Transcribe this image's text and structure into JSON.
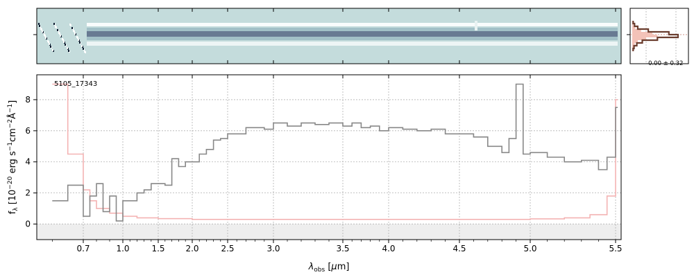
{
  "chart_data": [
    {
      "panel": "spectrum-2d",
      "type": "heatmap",
      "description_colormap": "bone_r / grey-blue",
      "band": "trace centered in aperture",
      "x_ticks": [
        0.7,
        1.0,
        1.5,
        2.0,
        2.5,
        3.0,
        3.5,
        4.0,
        4.5,
        5.0,
        5.5
      ]
    },
    {
      "panel": "spatial-profile",
      "type": "line",
      "annotation": "-0.00 ± 0.32",
      "profile": [
        0.02,
        0.05,
        0.12,
        0.35,
        0.8,
        1.0,
        0.55,
        0.22,
        0.1,
        0.04,
        0.02
      ],
      "colors": {
        "profile": "#6b3d2e",
        "band": "#f3c2b8"
      }
    },
    {
      "panel": "spectrum-1d",
      "type": "line",
      "label": "5105_17343",
      "xlabel": "λ_obs [μm]",
      "ylabel": "f_λ [10^-20 erg s^-1 cm^-2 Å^-1]",
      "xscale": "sqrt-like",
      "xlim": [
        0.55,
        5.52
      ],
      "ylim": [
        -1.0,
        9.6
      ],
      "x_ticks": [
        0.7,
        1.0,
        1.5,
        2.0,
        2.5,
        3.0,
        3.5,
        4.0,
        4.5,
        5.0,
        5.5
      ],
      "y_ticks": [
        0,
        2,
        4,
        6,
        8
      ],
      "grid": true,
      "series": [
        {
          "name": "",
          "color": "#888888",
          "x": [
            0.6,
            0.65,
            0.7,
            0.75,
            0.8,
            0.85,
            0.9,
            0.95,
            1.0,
            1.1,
            1.2,
            1.3,
            1.4,
            1.5,
            1.6,
            1.7,
            1.8,
            1.9,
            2.0,
            2.1,
            2.2,
            2.3,
            2.4,
            2.5,
            2.6,
            2.7,
            2.8,
            2.9,
            3.0,
            3.1,
            3.2,
            3.3,
            3.4,
            3.5,
            3.6,
            3.7,
            3.8,
            3.9,
            4.0,
            4.1,
            4.2,
            4.3,
            4.4,
            4.5,
            4.6,
            4.7,
            4.8,
            4.85,
            4.9,
            4.95,
            5.0,
            5.1,
            5.2,
            5.3,
            5.4,
            5.45,
            5.5
          ],
          "y": [
            1.5,
            2.5,
            0.5,
            1.8,
            2.6,
            0.8,
            1.8,
            0.2,
            1.5,
            1.5,
            2.0,
            2.2,
            2.6,
            2.6,
            2.5,
            4.2,
            3.7,
            4.0,
            4.0,
            4.5,
            4.8,
            5.4,
            5.5,
            5.8,
            5.8,
            6.2,
            6.2,
            6.1,
            6.5,
            6.3,
            6.5,
            6.4,
            6.5,
            6.3,
            6.5,
            6.2,
            6.3,
            6.0,
            6.2,
            6.1,
            6.0,
            6.1,
            5.8,
            5.8,
            5.6,
            5.0,
            4.6,
            5.5,
            9.0,
            4.5,
            4.6,
            4.3,
            4.0,
            4.1,
            3.5,
            4.3,
            7.5
          ]
        },
        {
          "name": "",
          "color": "#f4b3b3",
          "x": [
            0.6,
            0.65,
            0.7,
            0.75,
            0.8,
            0.9,
            1.0,
            1.2,
            1.5,
            2.0,
            2.5,
            3.0,
            3.5,
            4.0,
            4.5,
            5.0,
            5.2,
            5.35,
            5.45,
            5.5
          ],
          "y": [
            9.0,
            4.5,
            2.2,
            1.5,
            1.0,
            0.7,
            0.5,
            0.4,
            0.35,
            0.3,
            0.3,
            0.3,
            0.3,
            0.3,
            0.3,
            0.33,
            0.4,
            0.6,
            1.8,
            8.0
          ]
        }
      ]
    }
  ],
  "colors": {
    "spectrum": "#888888",
    "error": "#f4b3b3",
    "grid": "#b0b0b0",
    "zero_band": "#e8e8e8"
  }
}
